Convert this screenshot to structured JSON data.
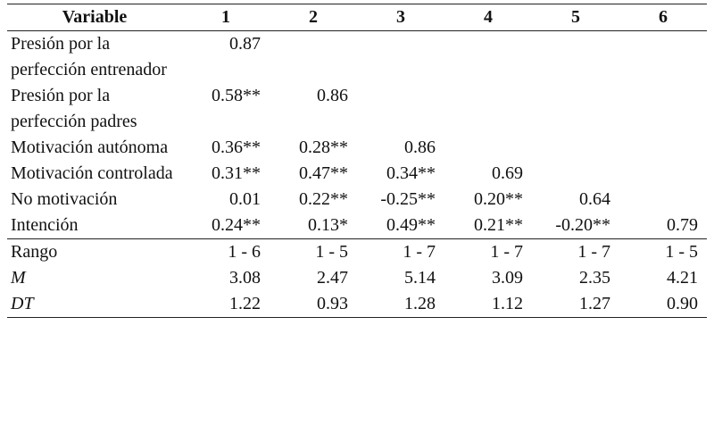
{
  "table": {
    "headers": [
      "Variable",
      "1",
      "2",
      "3",
      "4",
      "5",
      "6"
    ],
    "rows": [
      {
        "label": "Presión por la perfección entrenador",
        "values": [
          "0.87",
          "",
          "",
          "",
          "",
          ""
        ]
      },
      {
        "label": "Presión por la perfección padres",
        "values": [
          "0.58**",
          "0.86",
          "",
          "",
          "",
          ""
        ]
      },
      {
        "label": "Motivación autónoma",
        "values": [
          "0.36**",
          "0.28**",
          "0.86",
          "",
          "",
          ""
        ]
      },
      {
        "label": "Motivación controlada",
        "values": [
          "0.31**",
          "0.47**",
          "0.34**",
          "0.69",
          "",
          ""
        ]
      },
      {
        "label": "No motivación",
        "values": [
          "0.01",
          "0.22**",
          "-0.25**",
          "0.20**",
          "0.64",
          ""
        ]
      },
      {
        "label": "Intención",
        "values": [
          "0.24**",
          "0.13*",
          "0.49**",
          "0.21**",
          "-0.20**",
          "0.79"
        ]
      }
    ],
    "summary": [
      {
        "label": "Rango",
        "values": [
          "1 - 6",
          "1 - 5",
          "1 - 7",
          "1 - 7",
          "1 - 7",
          "1 - 5"
        ]
      },
      {
        "label": "M",
        "values": [
          "3.08",
          "2.47",
          "5.14",
          "3.09",
          "2.35",
          "4.21"
        ]
      },
      {
        "label": "DT",
        "values": [
          "1.22",
          "0.93",
          "1.28",
          "1.12",
          "1.27",
          "0.90"
        ]
      }
    ]
  }
}
